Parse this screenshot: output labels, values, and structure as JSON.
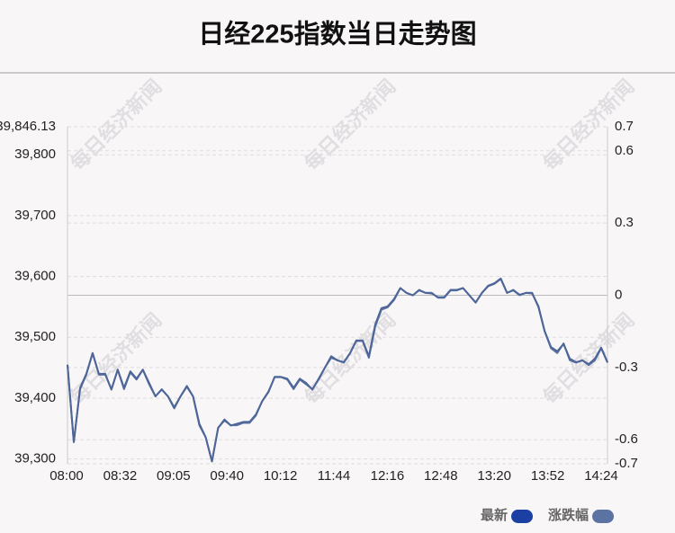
{
  "chart_data": {
    "type": "line",
    "title": "日经225指数当日走势图",
    "watermark": "每日经济新闻",
    "xticks": [
      "08:00",
      "08:32",
      "09:05",
      "09:40",
      "10:12",
      "11:44",
      "12:16",
      "12:48",
      "13:20",
      "13:52",
      "14:24"
    ],
    "ylim": [
      39292.1,
      39846.13
    ],
    "yticks": [
      {
        "value": 39300,
        "label": "39,300"
      },
      {
        "value": 39400,
        "label": "39,400"
      },
      {
        "value": 39500,
        "label": "39,500"
      },
      {
        "value": 39600,
        "label": "39,600"
      },
      {
        "value": 39700,
        "label": "39,700"
      },
      {
        "value": 39800,
        "label": "39,800"
      },
      {
        "value": 39846.13,
        "label": "39,846.13"
      }
    ],
    "y2lim": [
      -0.7,
      0.7
    ],
    "y2ticks": [
      -0.7,
      -0.6,
      -0.3,
      0,
      0.3,
      0.6,
      0.7
    ],
    "grid": true,
    "series": [
      {
        "name": "最新",
        "color": "#1c3fa3",
        "line_color": "#4d6597",
        "values": [
          39455,
          39328,
          39417,
          39440,
          39474,
          39440,
          39440,
          39414,
          39447,
          39417,
          39444,
          39432,
          39447,
          39425,
          39403,
          39414,
          39403,
          39385,
          39403,
          39420,
          39403,
          39358,
          39336,
          39296,
          39351,
          39365,
          39355,
          39358,
          39361,
          39361,
          39373,
          39395,
          39410,
          39435,
          39435,
          39432,
          39417,
          39432,
          39425,
          39414,
          39432,
          39450,
          39469,
          39462,
          39459,
          39474,
          39495,
          39495,
          39469,
          39521,
          39548,
          39551,
          39563,
          39581,
          39573,
          39569,
          39578,
          39573,
          39572,
          39566,
          39566,
          39578,
          39578,
          39581,
          39569,
          39557,
          39573,
          39584,
          39588,
          39596,
          39573,
          39578,
          39570,
          39573,
          39572,
          39551,
          39510,
          39484,
          39477,
          39489,
          39465,
          39459,
          39462,
          39456,
          39465,
          39483,
          39459
        ]
      },
      {
        "name": "涨跌幅",
        "color": "#5b73a3",
        "line_color": "#5b73a3",
        "axis": "y2",
        "values": [
          -0.29,
          -0.61,
          -0.39,
          -0.33,
          -0.24,
          -0.33,
          -0.33,
          -0.39,
          -0.31,
          -0.39,
          -0.32,
          -0.35,
          -0.31,
          -0.37,
          -0.42,
          -0.39,
          -0.42,
          -0.47,
          -0.42,
          -0.38,
          -0.42,
          -0.54,
          -0.59,
          -0.69,
          -0.55,
          -0.52,
          -0.54,
          -0.54,
          -0.53,
          -0.53,
          -0.5,
          -0.44,
          -0.4,
          -0.34,
          -0.34,
          -0.35,
          -0.39,
          -0.35,
          -0.37,
          -0.39,
          -0.35,
          -0.3,
          -0.26,
          -0.27,
          -0.28,
          -0.24,
          -0.19,
          -0.19,
          -0.26,
          -0.13,
          -0.06,
          -0.05,
          -0.02,
          0.03,
          0.01,
          0,
          0.02,
          0.01,
          0.01,
          -0.01,
          -0.01,
          0.02,
          0.02,
          0.03,
          0,
          -0.03,
          0.01,
          0.04,
          0.05,
          0.07,
          0.01,
          0.02,
          0,
          0.01,
          0.01,
          -0.05,
          -0.15,
          -0.22,
          -0.24,
          -0.2,
          -0.27,
          -0.28,
          -0.27,
          -0.29,
          -0.27,
          -0.22,
          -0.28
        ]
      }
    ]
  }
}
